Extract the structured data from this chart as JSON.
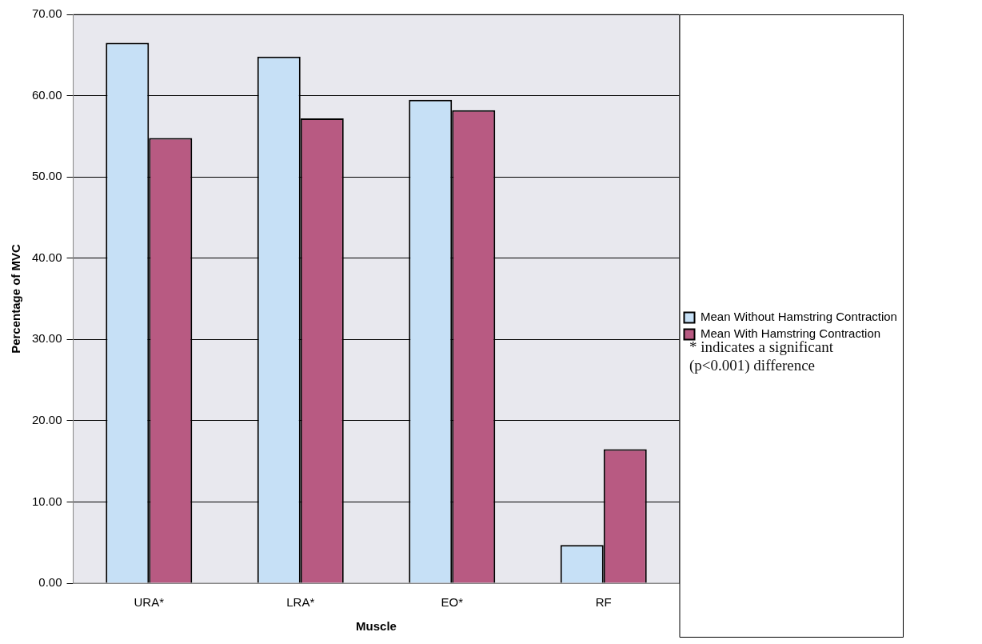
{
  "chart_data": {
    "type": "bar",
    "xlabel": "Muscle",
    "ylabel": "Percentage of MVC",
    "categories": [
      "URA*",
      "LRA*",
      "EO*",
      "RF"
    ],
    "series": [
      {
        "name": "Mean Without Hamstring Contraction",
        "color": "#c6e0f6",
        "values": [
          66.5,
          64.8,
          59.5,
          4.7
        ]
      },
      {
        "name": "Mean With Hamstring Contraction",
        "color": "#b85a82",
        "values": [
          54.8,
          57.2,
          58.2,
          16.5
        ]
      }
    ],
    "ylim": [
      0,
      70
    ],
    "yticks": [
      {
        "value": 0,
        "label": "0.00"
      },
      {
        "value": 10,
        "label": "10.00"
      },
      {
        "value": 20,
        "label": "20.00"
      },
      {
        "value": 30,
        "label": "30.00"
      },
      {
        "value": 40,
        "label": "40.00"
      },
      {
        "value": 50,
        "label": "50.00"
      },
      {
        "value": 60,
        "label": "60.00"
      },
      {
        "value": 70,
        "label": "70.00"
      }
    ],
    "grid": "y",
    "legend": "right",
    "annotations": [
      "* indicates a significant (p<0.001) difference"
    ]
  }
}
